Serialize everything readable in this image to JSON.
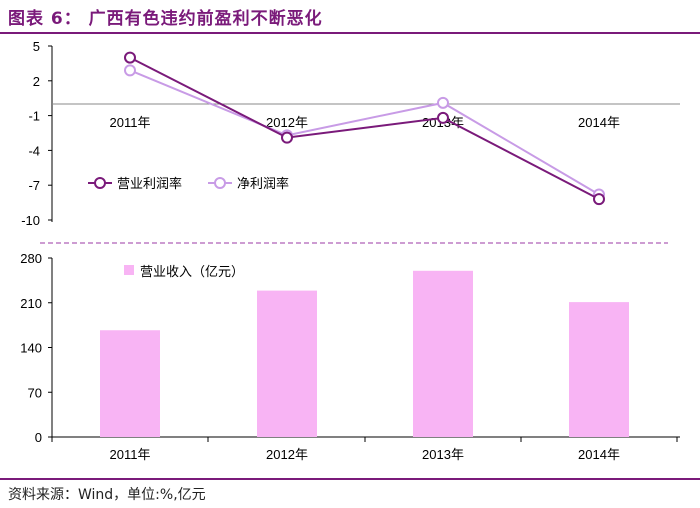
{
  "title": "图表 6：  广西有色违约前盈利不断恶化",
  "source": "资料来源：Wind，单位:%,亿元",
  "colors": {
    "accent": "#7a1a7a",
    "operating_margin": "#7a1a7a",
    "net_margin": "#c89be6",
    "revenue": "#f8b4f4",
    "divider": "#9b3aa5"
  },
  "chart_data": [
    {
      "type": "line",
      "categories": [
        "2011年",
        "2012年",
        "2013年",
        "2014年"
      ],
      "y_ticks": [
        "5",
        "2",
        "-1",
        "-4",
        "-7",
        "-10"
      ],
      "ylim": [
        -10,
        5
      ],
      "series": [
        {
          "name": "营业利润率",
          "values": [
            4.0,
            -2.9,
            -1.2,
            -8.2
          ]
        },
        {
          "name": "净利润率",
          "values": [
            2.9,
            -2.7,
            0.1,
            -7.8
          ]
        }
      ],
      "legend_position": "left-middle",
      "grid": false
    },
    {
      "type": "bar",
      "categories": [
        "2011年",
        "2012年",
        "2013年",
        "2014年"
      ],
      "y_ticks": [
        "280",
        "210",
        "140",
        "70",
        "0"
      ],
      "ylim": [
        0,
        280
      ],
      "series": [
        {
          "name": "营业收入（亿元）",
          "values": [
            167,
            229,
            260,
            211
          ]
        }
      ],
      "legend_position": "top-left",
      "grid": false
    }
  ]
}
